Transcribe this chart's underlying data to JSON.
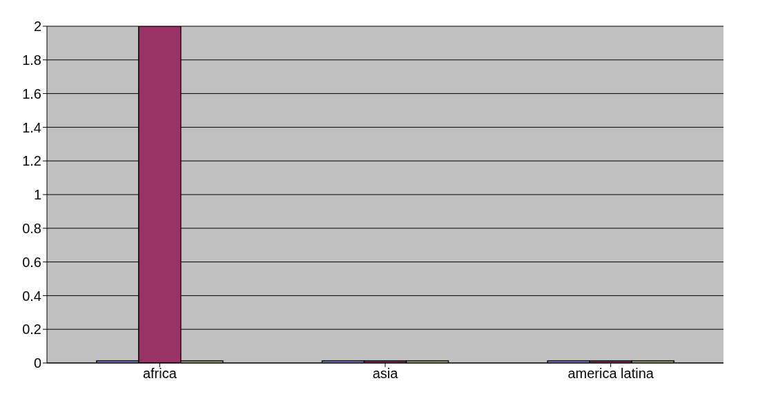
{
  "chart_data": {
    "type": "bar",
    "categories": [
      "africa",
      "asia",
      "america latina"
    ],
    "series": [
      {
        "color": "#9999ff",
        "values": [
          0,
          0,
          0
        ]
      },
      {
        "color": "#993366",
        "values": [
          2,
          0,
          0
        ]
      },
      {
        "color": "#cccc99",
        "values": [
          0,
          0,
          0
        ]
      }
    ],
    "ylim": [
      0,
      2
    ],
    "yticks": [
      0,
      0.2,
      0.4,
      0.6,
      0.8,
      1,
      1.2,
      1.4,
      1.6,
      1.8,
      2
    ],
    "grid": "y",
    "legend": false
  }
}
